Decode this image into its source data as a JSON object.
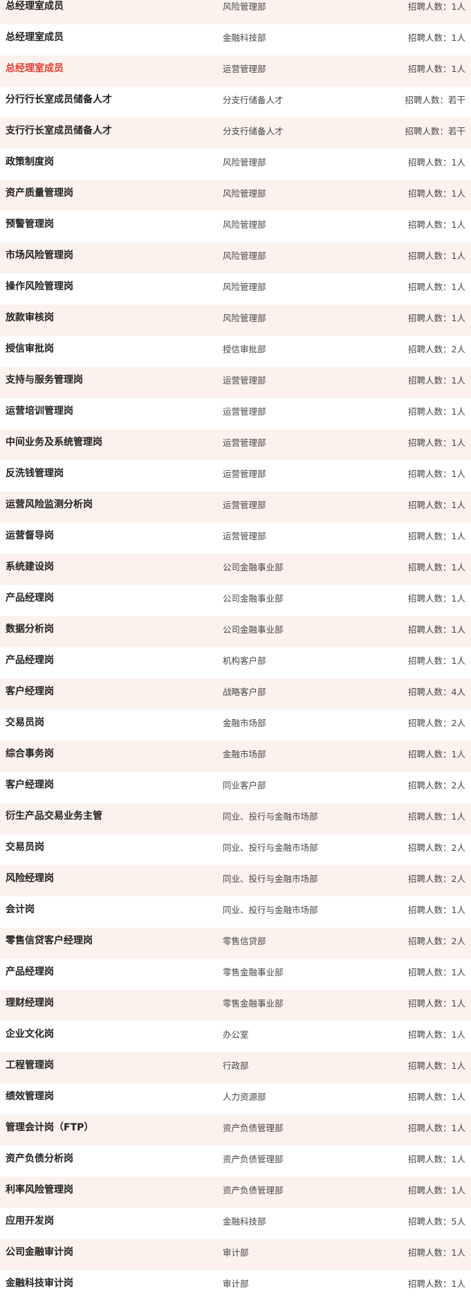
{
  "count_prefix": "招聘人数：",
  "colors": {
    "highlight": "#e53b2f",
    "stripe": "#fbf2ed"
  },
  "rows": [
    {
      "title": "总经理室成员",
      "dept": "风险管理部",
      "count": "招聘人数：1人"
    },
    {
      "title": "总经理室成员",
      "dept": "金融科技部",
      "count": "招聘人数：1人"
    },
    {
      "title": "总经理室成员",
      "dept": "运营管理部",
      "count": "招聘人数：1人",
      "highlight": true
    },
    {
      "title": "分行行长室成员储备人才",
      "dept": "分支行储备人才",
      "count": "招聘人数：若干"
    },
    {
      "title": "支行行长室成员储备人才",
      "dept": "分支行储备人才",
      "count": "招聘人数：若干"
    },
    {
      "title": "政策制度岗",
      "dept": "风险管理部",
      "count": "招聘人数：1人"
    },
    {
      "title": "资产质量管理岗",
      "dept": "风险管理部",
      "count": "招聘人数：1人"
    },
    {
      "title": "预警管理岗",
      "dept": "风险管理部",
      "count": "招聘人数：1人"
    },
    {
      "title": "市场风险管理岗",
      "dept": "风险管理部",
      "count": "招聘人数：1人"
    },
    {
      "title": "操作风险管理岗",
      "dept": "风险管理部",
      "count": "招聘人数：1人"
    },
    {
      "title": "放款审核岗",
      "dept": "风险管理部",
      "count": "招聘人数：1人"
    },
    {
      "title": "授信审批岗",
      "dept": "授信审批部",
      "count": "招聘人数：2人"
    },
    {
      "title": "支持与服务管理岗",
      "dept": "运营管理部",
      "count": "招聘人数：1人"
    },
    {
      "title": "运营培训管理岗",
      "dept": "运营管理部",
      "count": "招聘人数：1人"
    },
    {
      "title": "中间业务及系统管理岗",
      "dept": "运营管理部",
      "count": "招聘人数：1人"
    },
    {
      "title": "反洗钱管理岗",
      "dept": "运营管理部",
      "count": "招聘人数：1人"
    },
    {
      "title": "运营风险监测分析岗",
      "dept": "运营管理部",
      "count": "招聘人数：1人"
    },
    {
      "title": "运营督导岗",
      "dept": "运营管理部",
      "count": "招聘人数：1人"
    },
    {
      "title": "系统建设岗",
      "dept": "公司金融事业部",
      "count": "招聘人数：1人"
    },
    {
      "title": "产品经理岗",
      "dept": "公司金融事业部",
      "count": "招聘人数：1人"
    },
    {
      "title": "数据分析岗",
      "dept": "公司金融事业部",
      "count": "招聘人数：1人"
    },
    {
      "title": "产品经理岗",
      "dept": "机构客户部",
      "count": "招聘人数：1人"
    },
    {
      "title": "客户经理岗",
      "dept": "战略客户部",
      "count": "招聘人数：4人"
    },
    {
      "title": "交易员岗",
      "dept": "金融市场部",
      "count": "招聘人数：2人"
    },
    {
      "title": "综合事务岗",
      "dept": "金融市场部",
      "count": "招聘人数：1人"
    },
    {
      "title": "客户经理岗",
      "dept": "同业客户部",
      "count": "招聘人数：2人"
    },
    {
      "title": "衍生产品交易业务主管",
      "dept": "同业、投行与金融市场部",
      "count": "招聘人数：1人"
    },
    {
      "title": "交易员岗",
      "dept": "同业、投行与金融市场部",
      "count": "招聘人数：2人"
    },
    {
      "title": "风险经理岗",
      "dept": "同业、投行与金融市场部",
      "count": "招聘人数：2人"
    },
    {
      "title": "会计岗",
      "dept": "同业、投行与金融市场部",
      "count": "招聘人数：1人"
    },
    {
      "title": "零售信贷客户经理岗",
      "dept": "零售信贷部",
      "count": "招聘人数：2人"
    },
    {
      "title": "产品经理岗",
      "dept": "零售金融事业部",
      "count": "招聘人数：1人"
    },
    {
      "title": "理财经理岗",
      "dept": "零售金融事业部",
      "count": "招聘人数：1人"
    },
    {
      "title": "企业文化岗",
      "dept": "办公室",
      "count": "招聘人数：1人"
    },
    {
      "title": "工程管理岗",
      "dept": "行政部",
      "count": "招聘人数：1人"
    },
    {
      "title": "绩效管理岗",
      "dept": "人力资源部",
      "count": "招聘人数：1人"
    },
    {
      "title": "管理会计岗（FTP）",
      "dept": "资产负债管理部",
      "count": "招聘人数：1人"
    },
    {
      "title": "资产负债分析岗",
      "dept": "资产负债管理部",
      "count": "招聘人数：1人"
    },
    {
      "title": "利率风险管理岗",
      "dept": "资产负债管理部",
      "count": "招聘人数：1人"
    },
    {
      "title": "应用开发岗",
      "dept": "金融科技部",
      "count": "招聘人数：5人"
    },
    {
      "title": "公司金融审计岗",
      "dept": "审计部",
      "count": "招聘人数：1人"
    },
    {
      "title": "金融科技审计岗",
      "dept": "审计部",
      "count": "招聘人数：1人"
    }
  ]
}
